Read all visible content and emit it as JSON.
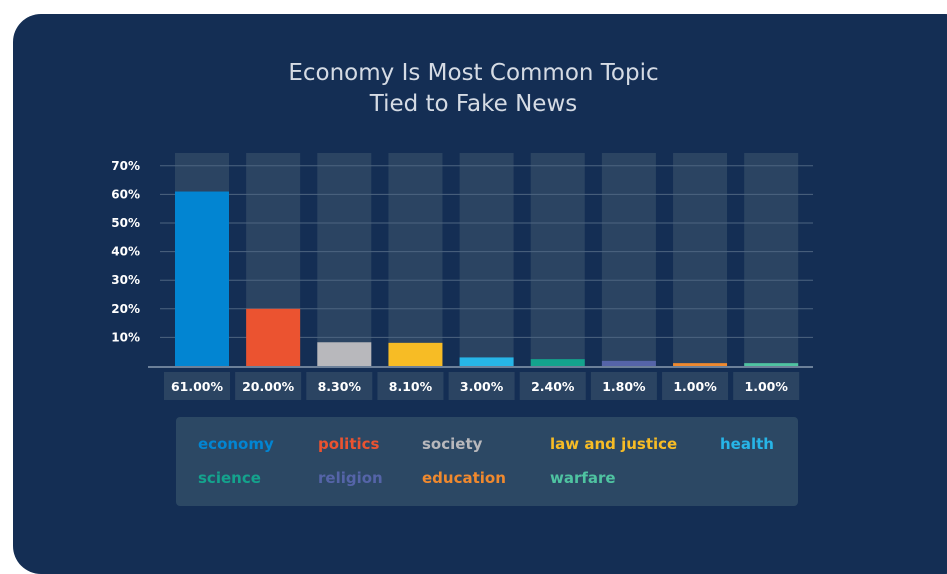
{
  "chart_data": {
    "type": "bar",
    "title": "Economy Is Most Common Topic Tied to Fake News",
    "title_lines": [
      "Economy Is Most Common Topic",
      "Tied to Fake News"
    ],
    "categories": [
      "economy",
      "politics",
      "society",
      "law and justice",
      "health",
      "science",
      "religion",
      "education",
      "warfare"
    ],
    "values": [
      61.0,
      20.0,
      8.3,
      8.1,
      3.0,
      2.4,
      1.8,
      1.0,
      1.0
    ],
    "value_labels": [
      "61.00%",
      "20.00%",
      "8.30%",
      "8.10%",
      "3.00%",
      "2.40%",
      "1.80%",
      "1.00%",
      "1.00%"
    ],
    "colors": [
      "#0285d2",
      "#eb5330",
      "#b8b8bc",
      "#f7bc25",
      "#27b5e7",
      "#14a38d",
      "#5564a8",
      "#f0892e",
      "#4fc3a1"
    ],
    "y_ticks": [
      10,
      20,
      30,
      40,
      50,
      60,
      70
    ],
    "y_tick_labels": [
      "10%",
      "20%",
      "30%",
      "40%",
      "50%",
      "60%",
      "70%"
    ],
    "ylim": [
      0,
      75
    ],
    "grid": true,
    "legend_position": "bottom",
    "xlabel": "",
    "ylabel": ""
  },
  "legend": [
    {
      "label": "economy",
      "color": "#0285d2"
    },
    {
      "label": "politics",
      "color": "#eb5330"
    },
    {
      "label": "society",
      "color": "#b8b8bc"
    },
    {
      "label": "law and justice",
      "color": "#f7bc25"
    },
    {
      "label": "health",
      "color": "#27b5e7"
    },
    {
      "label": "science",
      "color": "#14a38d"
    },
    {
      "label": "religion",
      "color": "#5564a8"
    },
    {
      "label": "education",
      "color": "#f0892e"
    },
    {
      "label": "warfare",
      "color": "#4fc3a1"
    }
  ]
}
